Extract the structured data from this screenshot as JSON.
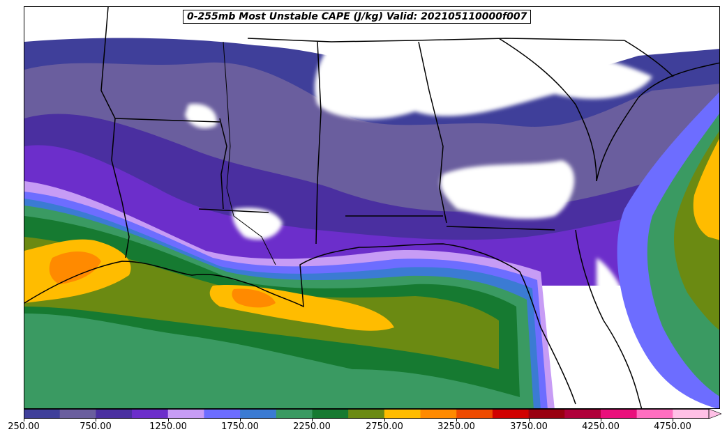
{
  "title": "0-255mb Most Unstable CAPE (J/kg) Valid: 202105110000f007",
  "colorbar": {
    "tick_labels": [
      "250.00",
      "750.00",
      "1250.00",
      "1750.00",
      "2250.00",
      "2750.00",
      "3250.00",
      "3750.00",
      "4250.00",
      "4750.00"
    ],
    "levels": [
      250,
      500,
      750,
      1000,
      1250,
      1500,
      1750,
      2000,
      2250,
      2500,
      2750,
      3000,
      3250,
      3500,
      3750,
      4000,
      4250,
      4500,
      4750,
      5000
    ],
    "colors": [
      "#3f3f9a",
      "#6a5e9e",
      "#4a2fa0",
      "#6c2ecb",
      "#c79cf5",
      "#6d6dff",
      "#3b7bd3",
      "#3a9a62",
      "#167a31",
      "#6b8a12",
      "#ffbc00",
      "#ff8a00",
      "#ee4a00",
      "#d10000",
      "#990010",
      "#b0003a",
      "#ea0f7c",
      "#ff6ec0",
      "#ffc0e6"
    ],
    "extend": "max"
  },
  "map": {
    "region": "Southeastern United States and Gulf of Mexico",
    "field": "0-255mb Most Unstable CAPE",
    "units": "J/kg"
  }
}
